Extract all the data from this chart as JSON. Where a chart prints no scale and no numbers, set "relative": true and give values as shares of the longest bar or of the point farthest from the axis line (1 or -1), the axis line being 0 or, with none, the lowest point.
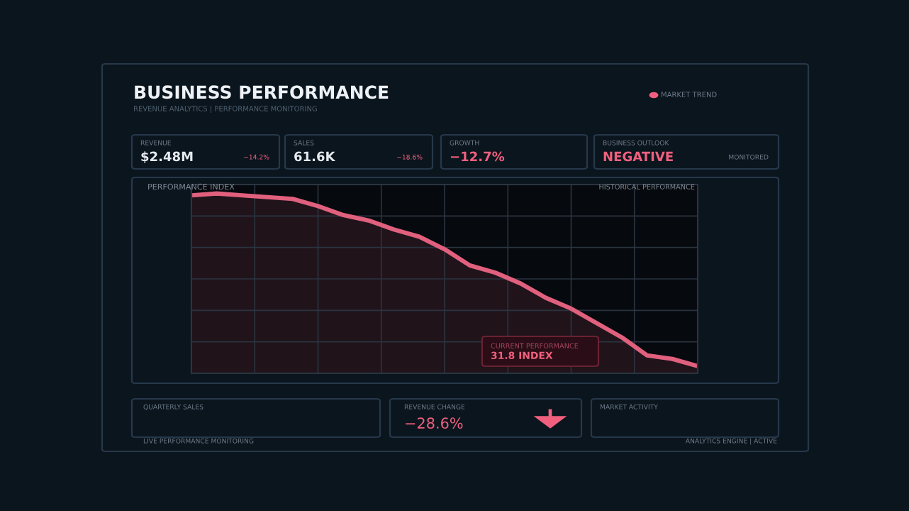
{
  "chart_data": [
    {
      "type": "area",
      "title": "PERFORMANCE INDEX",
      "relative": true,
      "grid": true,
      "categories": [
        null,
        null,
        null,
        null,
        null,
        null,
        null,
        null,
        null,
        null,
        null,
        null,
        null,
        null,
        null,
        null,
        null,
        null,
        null,
        null,
        null
      ],
      "series": [
        {
          "color": "#e0607e",
          "values": [
            0.99,
            1.0,
            0.99,
            0.98,
            0.97,
            0.93,
            0.88,
            0.85,
            0.8,
            0.76,
            0.69,
            0.6,
            0.56,
            0.5,
            0.42,
            0.36,
            0.28,
            0.2,
            0.1,
            0.08,
            0.04
          ]
        }
      ],
      "annotations": [
        "HISTORICAL PERFORMANCE",
        "CURRENT PERFORMANCE",
        "31.8 INDEX"
      ]
    },
    {
      "type": "other",
      "title": "BUSINESS PERFORMANCE",
      "subtitle": "REVENUE ANALYTICS | PERFORMANCE MONITORING",
      "annotations": [
        "MARKET TREND",
        "REVENUE",
        "$2.48M",
        "−14.2%",
        "SALES",
        "61.6K",
        "−18.6%",
        "GROWTH",
        "−12.7%",
        "BUSINESS OUTLOOK",
        "NEGATIVE",
        "MONITORED",
        "QUARTERLY SALES",
        "REVENUE CHANGE",
        "−28.6%",
        "MARKET ACTIVITY",
        "LIVE PERFORMANCE MONITORING",
        "ANALYTICS ENGINE | ACTIVE"
      ]
    }
  ]
}
